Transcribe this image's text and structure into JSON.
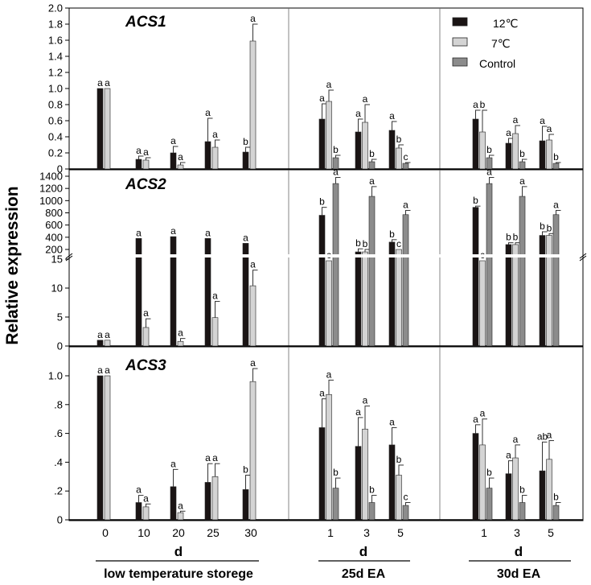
{
  "y_axis_label": "Relative expression",
  "x_axis": {
    "categories": [
      "0",
      "10",
      "20",
      "25",
      "30",
      "1",
      "3",
      "5",
      "1",
      "3",
      "5"
    ],
    "group_unit_labels": [
      "d",
      "d",
      "d"
    ],
    "group_labels": [
      "low temperature storege",
      "25d EA",
      "30d EA"
    ]
  },
  "legend": {
    "items": [
      {
        "label": "12℃",
        "color": "#1a1414"
      },
      {
        "label": "7℃",
        "color": "#d4d4d4"
      },
      {
        "label": "Control",
        "color": "#8c8c8c"
      }
    ]
  },
  "colors": {
    "12C": "#1a1414",
    "7C": "#d4d4d4",
    "Control": "#8c8c8c"
  },
  "chart_data": [
    {
      "type": "bar",
      "title": "ACS1",
      "ylim": [
        0,
        2.0
      ],
      "yticks": [
        "0",
        "0.2",
        "0.4",
        "0.6",
        "0.8",
        "1.0",
        "1.2",
        "1.4",
        "1.6",
        "1.8",
        "2.0"
      ],
      "ytick_values": [
        0,
        0.2,
        0.4,
        0.6,
        0.8,
        1.0,
        1.2,
        1.4,
        1.6,
        1.8,
        2.0
      ],
      "categories": [
        "0",
        "10",
        "20",
        "25",
        "30",
        "1",
        "3",
        "5",
        "1",
        "3",
        "5"
      ],
      "series": [
        {
          "name": "12℃",
          "values": [
            1.0,
            0.12,
            0.2,
            0.34,
            0.21,
            0.62,
            0.46,
            0.48,
            0.62,
            0.32,
            0.35
          ],
          "errors": [
            0,
            0.04,
            0.08,
            0.29,
            0.06,
            0.19,
            0.16,
            0.11,
            0.11,
            0.06,
            0.18
          ],
          "letters": [
            "a",
            "a",
            "a",
            "a",
            "b",
            "a",
            "a",
            "a",
            "a",
            "a",
            "a"
          ]
        },
        {
          "name": "7℃",
          "values": [
            1.0,
            0.11,
            0.05,
            0.27,
            1.59,
            0.84,
            0.58,
            0.26,
            0.46,
            0.44,
            0.36
          ],
          "errors": [
            0,
            0.03,
            0.03,
            0.09,
            0.21,
            0.14,
            0.22,
            0.04,
            0.27,
            0.1,
            0.07
          ],
          "letters": [
            "a",
            "a",
            "a",
            "a",
            "a",
            "a",
            "a",
            "b",
            "b",
            "a",
            "a"
          ]
        },
        {
          "name": "Control",
          "values": [
            null,
            null,
            null,
            null,
            null,
            0.14,
            0.09,
            0.07,
            0.14,
            0.09,
            0.07
          ],
          "errors": [
            null,
            null,
            null,
            null,
            null,
            0.03,
            0.03,
            0.01,
            0.03,
            0.03,
            0.01
          ],
          "letters": [
            "",
            "",
            "",
            "",
            "",
            "b",
            "b",
            "c",
            "b",
            "b",
            "b"
          ]
        }
      ]
    },
    {
      "type": "bar",
      "title": "ACS2",
      "broken_axis": true,
      "ylim_lower": [
        0,
        15
      ],
      "ylim_upper": [
        15,
        1400
      ],
      "yticks_lower": [
        "0",
        "5",
        "10",
        "15"
      ],
      "ytick_values_lower": [
        0,
        5,
        10,
        15
      ],
      "yticks_upper": [
        "200",
        "400",
        "600",
        "800",
        "1000",
        "1200",
        "1400"
      ],
      "ytick_values_upper": [
        200,
        400,
        600,
        800,
        1000,
        1200,
        1400
      ],
      "categories": [
        "0",
        "10",
        "20",
        "25",
        "30",
        "1",
        "3",
        "5",
        "1",
        "3",
        "5"
      ],
      "series": [
        {
          "name": "12℃",
          "values": [
            1.0,
            380,
            410,
            380,
            300,
            760,
            160,
            320,
            890,
            280,
            430
          ],
          "errors": [
            0,
            0,
            0,
            0,
            0,
            130,
            50,
            40,
            20,
            30,
            60
          ],
          "letters": [
            "a",
            "a",
            "a",
            "a",
            "a",
            "b",
            "b",
            "b",
            "b",
            "b",
            "b"
          ]
        },
        {
          "name": "7℃",
          "values": [
            1.0,
            3.2,
            0.8,
            4.9,
            10.4,
            15.1,
            160,
            200,
            15.1,
            280,
            430
          ],
          "errors": [
            0,
            1.5,
            0.5,
            2.8,
            2.7,
            0,
            40,
            0,
            0,
            30,
            30
          ],
          "letters": [
            "a",
            "a",
            "a",
            "a",
            "a",
            "c",
            "b",
            "c",
            "c",
            "b",
            "b"
          ]
        },
        {
          "name": "Control",
          "values": [
            null,
            null,
            null,
            null,
            null,
            1280,
            1070,
            770,
            1280,
            1070,
            770
          ],
          "errors": [
            null,
            null,
            null,
            null,
            null,
            100,
            160,
            70,
            100,
            160,
            70
          ],
          "letters": [
            "",
            "",
            "",
            "",
            "",
            "a",
            "a",
            "a",
            "a",
            "a",
            "a"
          ]
        }
      ]
    },
    {
      "type": "bar",
      "title": "ACS3",
      "ylim": [
        0,
        1.1
      ],
      "yticks": [
        "0",
        ".2",
        ".4",
        ".6",
        ".8",
        "1.0"
      ],
      "ytick_values": [
        0,
        0.2,
        0.4,
        0.6,
        0.8,
        1.0
      ],
      "categories": [
        "0",
        "10",
        "20",
        "25",
        "30",
        "1",
        "3",
        "5",
        "1",
        "3",
        "5"
      ],
      "series": [
        {
          "name": "12℃",
          "values": [
            1.0,
            0.12,
            0.23,
            0.26,
            0.21,
            0.64,
            0.51,
            0.52,
            0.6,
            0.32,
            0.34
          ],
          "errors": [
            0,
            0.05,
            0.12,
            0.13,
            0.1,
            0.2,
            0.2,
            0.12,
            0.06,
            0.09,
            0.2
          ],
          "letters": [
            "a",
            "a",
            "a",
            "a",
            "b",
            "a",
            "a",
            "a",
            "a",
            "a",
            "ab"
          ]
        },
        {
          "name": "7℃",
          "values": [
            1.0,
            0.09,
            0.05,
            0.3,
            0.96,
            0.87,
            0.63,
            0.31,
            0.52,
            0.43,
            0.42
          ],
          "errors": [
            0,
            0.02,
            0.01,
            0.09,
            0.09,
            0.1,
            0.16,
            0.07,
            0.18,
            0.09,
            0.13
          ],
          "letters": [
            "a",
            "a",
            "a",
            "a",
            "a",
            "a",
            "a",
            "b",
            "a",
            "a",
            "a"
          ]
        },
        {
          "name": "Control",
          "values": [
            null,
            null,
            null,
            null,
            null,
            0.22,
            0.12,
            0.1,
            0.22,
            0.12,
            0.1
          ],
          "errors": [
            null,
            null,
            null,
            null,
            null,
            0.07,
            0.05,
            0.02,
            0.07,
            0.05,
            0.02
          ],
          "letters": [
            "",
            "",
            "",
            "",
            "",
            "b",
            "b",
            "c",
            "b",
            "b",
            "b"
          ]
        }
      ]
    }
  ]
}
